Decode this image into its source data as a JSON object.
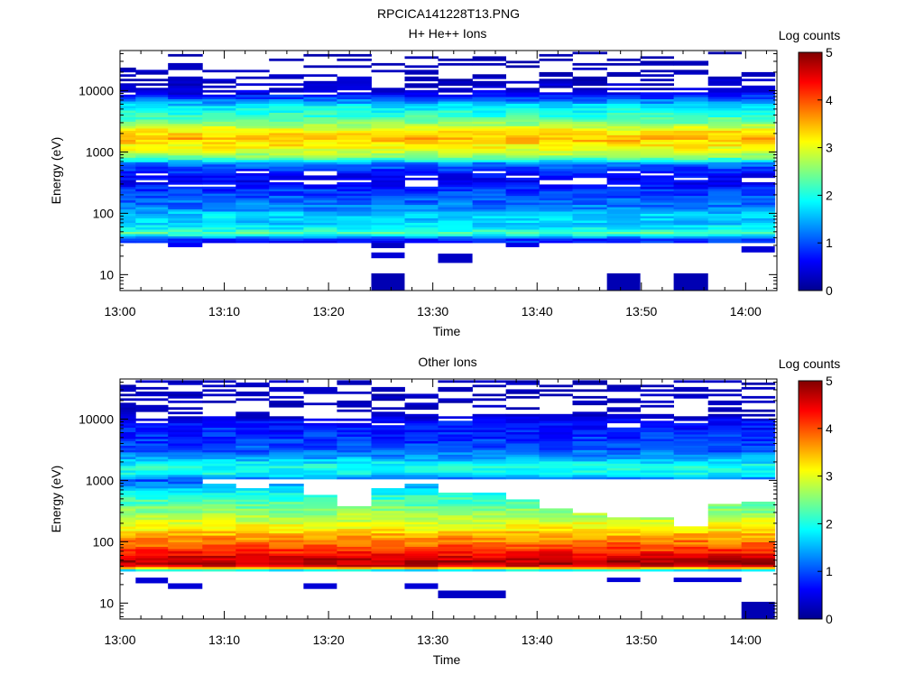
{
  "figure": {
    "title": "RPCICA141228T13.PNG"
  },
  "colormap": [
    "#00008f",
    "#0000ff",
    "#0080ff",
    "#00ffff",
    "#80ff80",
    "#ffff00",
    "#ff8000",
    "#ff0000",
    "#800000"
  ],
  "chart_data": [
    {
      "type": "heatmap",
      "title": "H+ He++ Ions",
      "xlabel": "Time",
      "ylabel": "Energy (eV)",
      "x_ticks": [
        "13:00",
        "13:10",
        "13:20",
        "13:30",
        "13:40",
        "13:50",
        "14:00"
      ],
      "x_range_minutes": [
        0,
        63
      ],
      "y_scale": "log",
      "y_ticks": [
        "10",
        "100",
        "1000",
        "10000"
      ],
      "y_range": [
        5.5,
        45000
      ],
      "colorbar": {
        "label": "Log counts",
        "ticks": [
          "0",
          "1",
          "2",
          "3",
          "4",
          "5"
        ],
        "range": [
          0,
          5
        ]
      },
      "time_bins_minutes": [
        1.5,
        4.6,
        7.9,
        11.1,
        14.3,
        17.6,
        20.8,
        24.1,
        27.3,
        30.5,
        33.8,
        37.0,
        40.2,
        43.4,
        46.7,
        49.9,
        53.1,
        56.4,
        59.6,
        62.8
      ],
      "energy_profile": [
        [
          38,
          0.8
        ],
        [
          42,
          1.6
        ],
        [
          48,
          2.3
        ],
        [
          55,
          1.9
        ],
        [
          70,
          1.6
        ],
        [
          90,
          1.7
        ],
        [
          120,
          1.3
        ],
        [
          160,
          1.1
        ],
        [
          230,
          0.9
        ],
        [
          320,
          0.6
        ],
        [
          450,
          0.7
        ],
        [
          650,
          1.2
        ],
        [
          800,
          2.4
        ],
        [
          1000,
          2.9
        ],
        [
          1300,
          3.2
        ],
        [
          1700,
          3.5
        ],
        [
          2300,
          3.1
        ],
        [
          3000,
          2.5
        ],
        [
          4000,
          2.1
        ],
        [
          5500,
          1.8
        ],
        [
          7000,
          1.2
        ],
        [
          9000,
          0.6
        ],
        [
          12000,
          0.4
        ],
        [
          20000,
          0.3
        ],
        [
          40000,
          0.2
        ]
      ],
      "low_energy_blobs": [
        {
          "t0": 24.1,
          "t1": 27.3,
          "e0": 5.6,
          "e1": 10.5,
          "value": 0.2
        },
        {
          "t0": 46.7,
          "t1": 49.9,
          "e0": 5.6,
          "e1": 10.5,
          "value": 0.2
        },
        {
          "t0": 53.1,
          "t1": 56.4,
          "e0": 5.6,
          "e1": 10.5,
          "value": 0.2
        },
        {
          "t0": 30.5,
          "t1": 33.8,
          "e0": 15.5,
          "e1": 22,
          "value": 0.3
        },
        {
          "t0": 24.1,
          "t1": 27.3,
          "e0": 18.5,
          "e1": 23,
          "value": 0.4
        },
        {
          "t0": 24.1,
          "t1": 27.3,
          "e0": 27,
          "e1": 33,
          "value": 0.3
        },
        {
          "t0": 59.6,
          "t1": 62.8,
          "e0": 23,
          "e1": 29,
          "value": 0.4
        },
        {
          "t0": 4.6,
          "t1": 7.9,
          "e0": 28,
          "e1": 33,
          "value": 0.6
        },
        {
          "t0": 37.0,
          "t1": 40.2,
          "e0": 28,
          "e1": 33,
          "value": 0.5
        }
      ]
    },
    {
      "type": "heatmap",
      "title": "Other Ions",
      "xlabel": "Time",
      "ylabel": "Energy (eV)",
      "x_ticks": [
        "13:00",
        "13:10",
        "13:20",
        "13:30",
        "13:40",
        "13:50",
        "14:00"
      ],
      "x_range_minutes": [
        0,
        63
      ],
      "y_scale": "log",
      "y_ticks": [
        "10",
        "100",
        "1000",
        "10000"
      ],
      "y_range": [
        5.5,
        45000
      ],
      "colorbar": {
        "label": "Log counts",
        "ticks": [
          "0",
          "1",
          "2",
          "3",
          "4",
          "5"
        ],
        "range": [
          0,
          5
        ]
      },
      "time_bins_minutes": [
        1.5,
        4.6,
        7.9,
        11.1,
        14.3,
        17.6,
        20.8,
        24.1,
        27.3,
        30.5,
        33.8,
        37.0,
        40.2,
        43.4,
        46.7,
        49.9,
        53.1,
        56.4,
        59.6,
        62.8
      ],
      "energy_profile": [
        [
          33,
          1.0
        ],
        [
          36,
          2.8
        ],
        [
          40,
          4.5
        ],
        [
          45,
          4.8
        ],
        [
          55,
          4.6
        ],
        [
          70,
          4.2
        ],
        [
          90,
          3.9
        ],
        [
          120,
          3.6
        ],
        [
          160,
          3.2
        ],
        [
          220,
          2.9
        ],
        [
          300,
          2.6
        ],
        [
          420,
          2.3
        ],
        [
          600,
          2.0
        ],
        [
          800,
          1.5
        ],
        [
          1000,
          1.0
        ],
        [
          1300,
          1.9
        ],
        [
          1700,
          2.0
        ],
        [
          2300,
          1.5
        ],
        [
          3000,
          1.1
        ],
        [
          4000,
          0.9
        ],
        [
          6000,
          0.8
        ],
        [
          9000,
          0.7
        ],
        [
          12000,
          0.3
        ]
      ],
      "upper_cutoff_eV": [
        1200,
        1100,
        1100,
        900,
        750,
        900,
        600,
        380,
        750,
        900,
        650,
        650,
        500,
        350,
        300,
        260,
        250,
        180,
        420,
        450
      ],
      "low_energy_blobs": [
        {
          "t0": 1.5,
          "t1": 4.6,
          "e0": 21,
          "e1": 26,
          "value": 0.4
        },
        {
          "t0": 4.6,
          "t1": 7.9,
          "e0": 17,
          "e1": 21,
          "value": 0.4
        },
        {
          "t0": 17.6,
          "t1": 20.8,
          "e0": 17,
          "e1": 21,
          "value": 0.4
        },
        {
          "t0": 27.3,
          "t1": 30.5,
          "e0": 17,
          "e1": 21,
          "value": 0.4
        },
        {
          "t0": 30.5,
          "t1": 37.0,
          "e0": 12,
          "e1": 16,
          "value": 0.3
        },
        {
          "t0": 46.7,
          "t1": 49.9,
          "e0": 22,
          "e1": 26,
          "value": 0.4
        },
        {
          "t0": 53.1,
          "t1": 59.6,
          "e0": 22,
          "e1": 26,
          "value": 0.4
        },
        {
          "t0": 59.6,
          "t1": 62.8,
          "e0": 5.6,
          "e1": 10.5,
          "value": 0.2
        }
      ]
    }
  ]
}
